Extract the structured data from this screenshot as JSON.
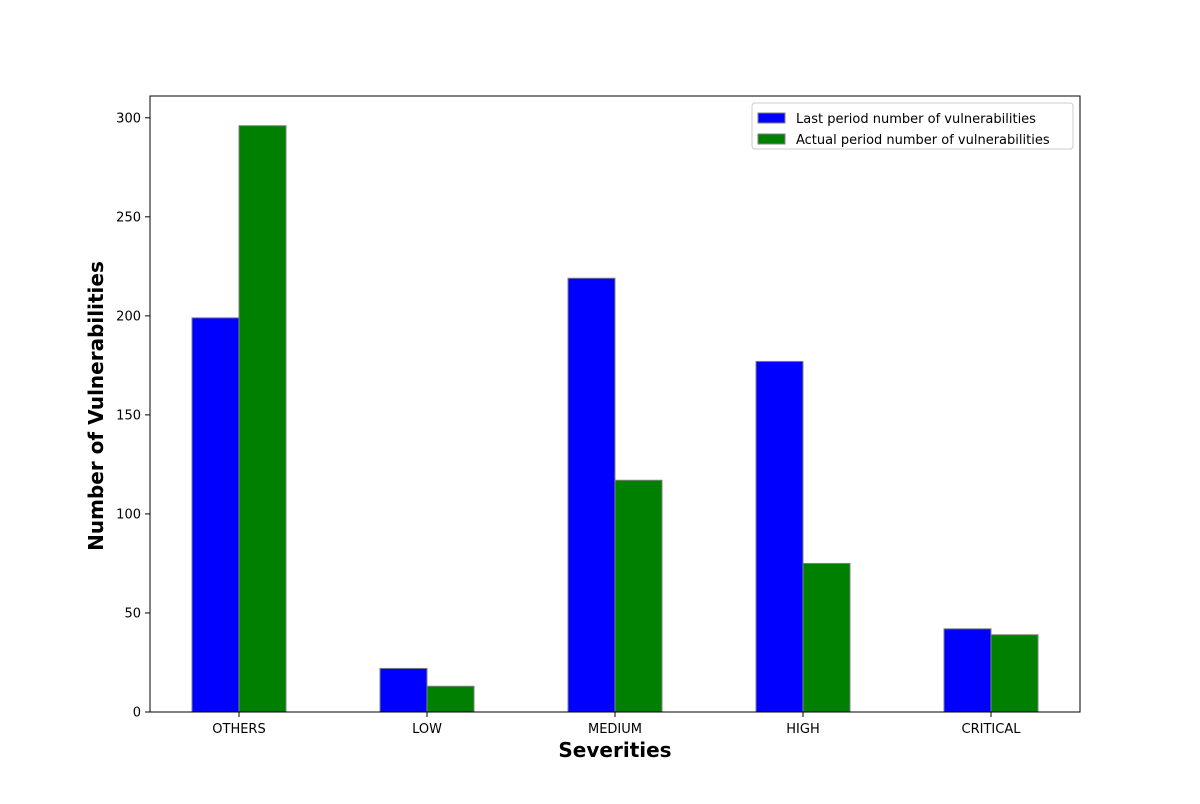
{
  "chart_data": {
    "type": "bar",
    "title": "",
    "xlabel": "Severities",
    "ylabel": "Number of Vulnerabilities",
    "categories": [
      "OTHERS",
      "LOW",
      "MEDIUM",
      "HIGH",
      "CRITICAL"
    ],
    "series": [
      {
        "name": "Last period number of vulnerabilities",
        "color": "#0000ff",
        "values": [
          199,
          22,
          219,
          177,
          42
        ]
      },
      {
        "name": "Actual period number of vulnerabilities",
        "color": "#008000",
        "values": [
          296,
          13,
          117,
          75,
          39
        ]
      }
    ],
    "ylim": [
      0,
      311
    ],
    "yticks": [
      "0",
      "50",
      "100",
      "150",
      "200",
      "250",
      "300"
    ],
    "grid": false,
    "legend_position": "top-right",
    "bar_edge_color": "#808080"
  }
}
